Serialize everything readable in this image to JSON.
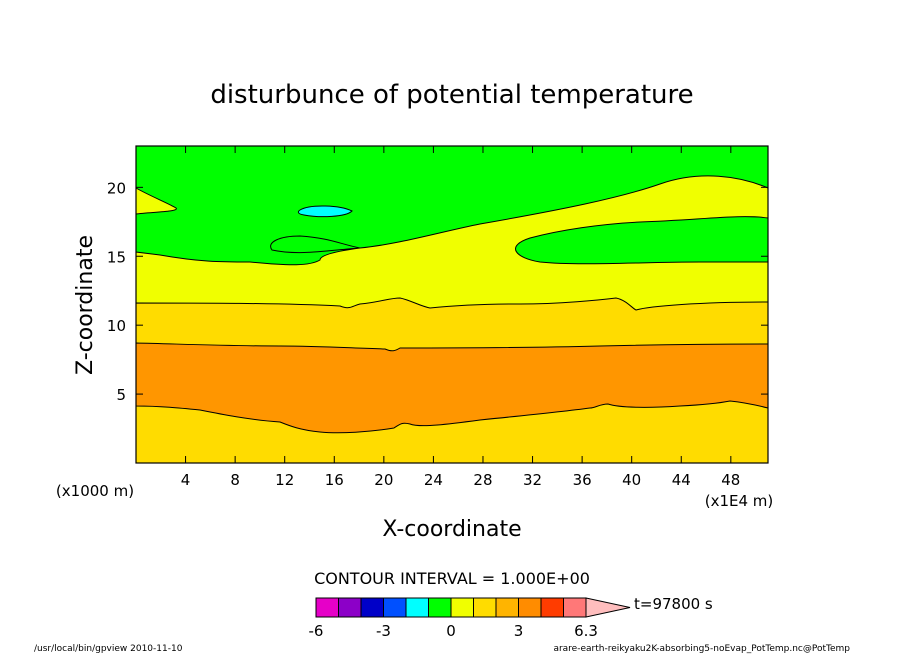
{
  "chart_data": {
    "type": "contour",
    "title": "disturbunce of potential temperature",
    "xlabel": "X-coordinate",
    "ylabel": "Z-coordinate",
    "x_unit_note": "(x1E4 m)",
    "y_unit_note": "(x1000 m)",
    "xlim": [
      0,
      51
    ],
    "ylim": [
      0,
      23
    ],
    "x_ticks": [
      "4",
      "8",
      "12",
      "16",
      "20",
      "24",
      "28",
      "32",
      "36",
      "40",
      "44",
      "48"
    ],
    "y_ticks": [
      "5",
      "10",
      "15",
      "20"
    ],
    "x_tick_values": [
      4,
      8,
      12,
      16,
      20,
      24,
      28,
      32,
      36,
      40,
      44,
      48
    ],
    "y_tick_values": [
      5,
      10,
      15,
      20
    ],
    "contour_interval_text": "CONTOUR INTERVAL = 1.000E+00",
    "time_text": "t=97800 s",
    "colorbar_labels": [
      "-6",
      "-3",
      "0",
      "3",
      "6.3"
    ],
    "colorbar_colors": [
      "#e600c8",
      "#8c00c8",
      "#0000c8",
      "#0050ff",
      "#00ffff",
      "#00ff00",
      "#f0ff00",
      "#ffdc00",
      "#ffb400",
      "#ff8c00",
      "#ff3c00",
      "#ff7878",
      "#ffbebe"
    ],
    "level_colors": {
      "1_to_2": "#00ffff",
      "-1_to_0": "#00ff00",
      "0_to_1": "#f0ff00",
      "1_to_2b": "#ffdc00",
      "2_to_3": "#ffb400",
      "above_3": "#ff9600"
    }
  },
  "footer": {
    "left": "/usr/local/bin/gpview 2010-11-10",
    "right": "arare-earth-reikyaku2K-absorbing5-noEvap_PotTemp.nc@PotTemp"
  }
}
